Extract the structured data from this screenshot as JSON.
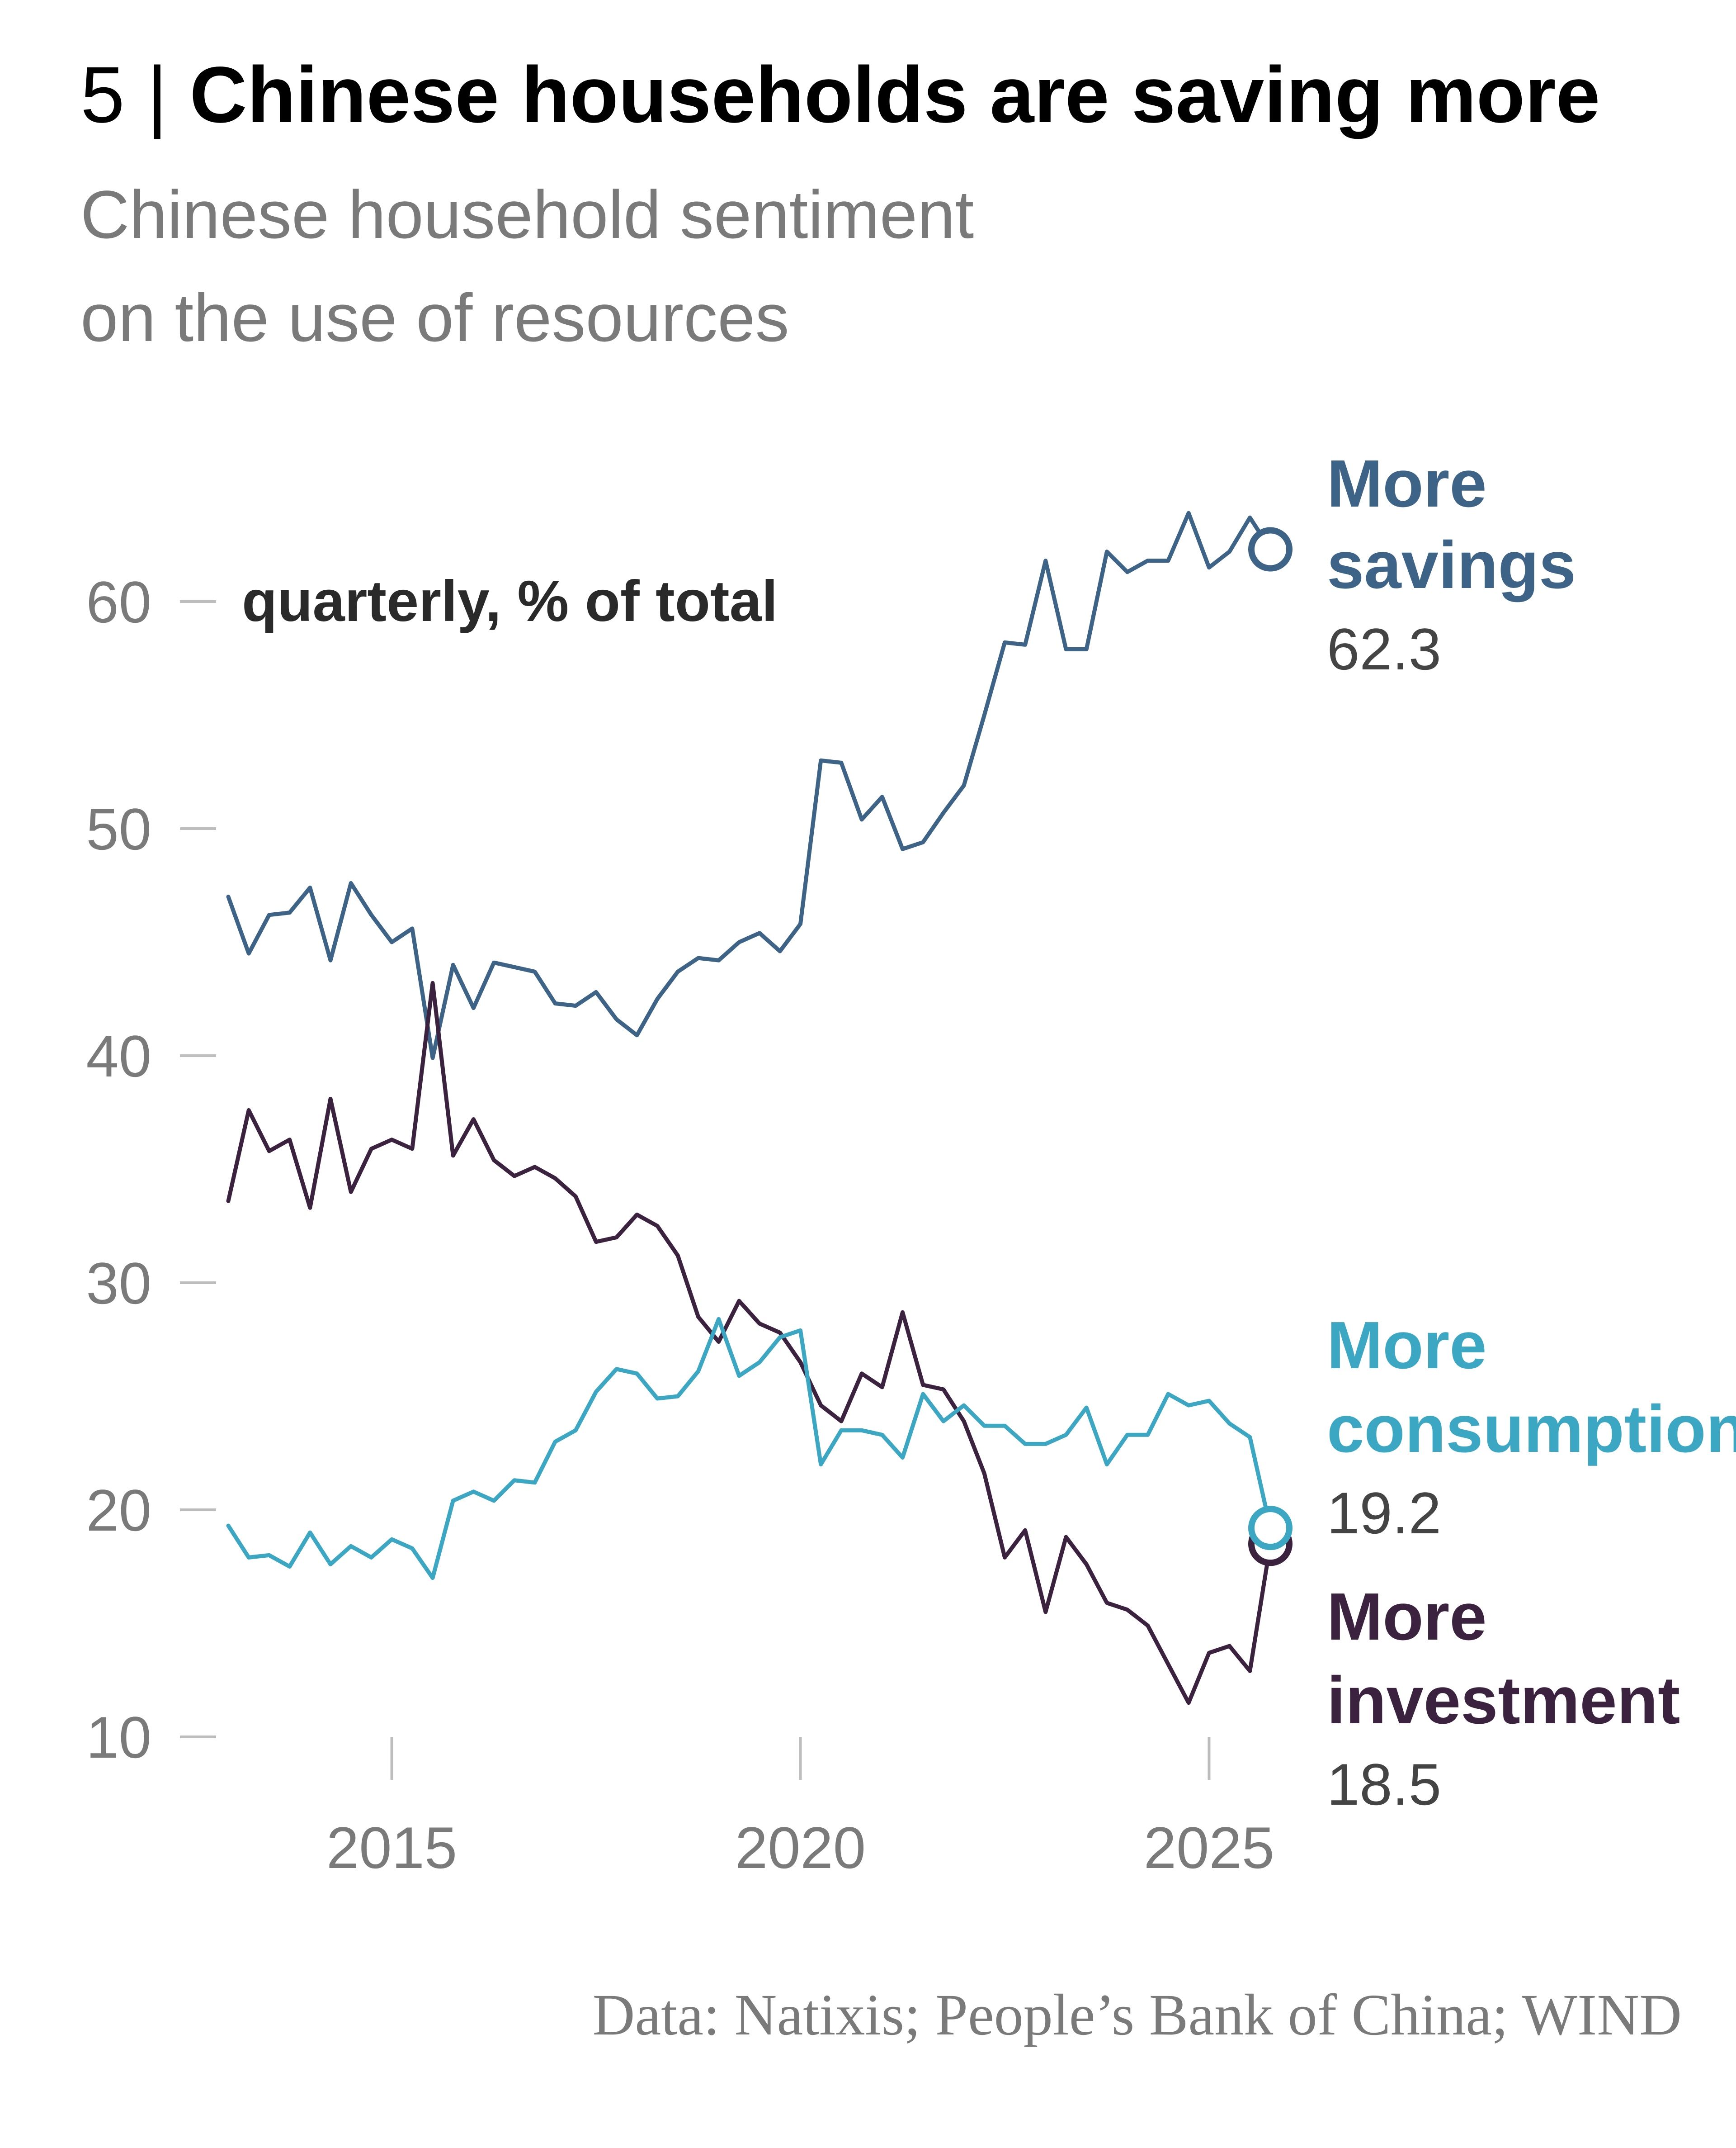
{
  "header": {
    "number": "5 |",
    "title": "Chinese households are saving more",
    "subtitle_line1": "Chinese household sentiment",
    "subtitle_line2": "on the use of resources"
  },
  "source": "Data: Natixis; People’s Bank of China; WIND",
  "colors": {
    "savings": "#3d6387",
    "consumption": "#3ba7c2",
    "investment": "#3b2340",
    "axis_text": "#7a7a7a",
    "tick": "#bdbdbd"
  },
  "chart_data": {
    "type": "line",
    "unit_note": "quarterly, % of total",
    "xlim": [
      2013,
      2025.75
    ],
    "ylim": [
      10,
      65
    ],
    "y_ticks": [
      10,
      20,
      30,
      40,
      50,
      60
    ],
    "y_tick_labels": [
      "10",
      "20",
      "30",
      "40",
      "50",
      "60"
    ],
    "x_ticks": [
      2015,
      2020,
      2025
    ],
    "x_tick_labels": [
      "2015",
      "2020",
      "2025"
    ],
    "grid": false,
    "x": [
      2013.0,
      2013.25,
      2013.5,
      2013.75,
      2014.0,
      2014.25,
      2014.5,
      2014.75,
      2015.0,
      2015.25,
      2015.5,
      2015.75,
      2016.0,
      2016.25,
      2016.5,
      2016.75,
      2017.0,
      2017.25,
      2017.5,
      2017.75,
      2018.0,
      2018.25,
      2018.5,
      2018.75,
      2019.0,
      2019.25,
      2019.5,
      2019.75,
      2020.0,
      2020.25,
      2020.5,
      2020.75,
      2021.0,
      2021.25,
      2021.5,
      2021.75,
      2022.0,
      2022.25,
      2022.5,
      2022.75,
      2023.0,
      2023.25,
      2023.5,
      2023.75,
      2024.0,
      2024.25,
      2024.5,
      2024.75,
      2025.0,
      2025.25,
      2025.5,
      2025.75
    ],
    "series": [
      {
        "name": "More savings",
        "name_line1": "More",
        "name_line2": "savings",
        "last_label": "62.3",
        "values": [
          47.0,
          44.5,
          46.2,
          46.3,
          47.4,
          44.2,
          47.6,
          46.2,
          45.0,
          45.6,
          39.9,
          44.0,
          42.1,
          44.1,
          43.9,
          43.7,
          42.3,
          42.2,
          42.8,
          41.6,
          40.9,
          42.5,
          43.7,
          44.3,
          44.2,
          45.0,
          45.4,
          44.6,
          45.8,
          53.0,
          52.9,
          50.4,
          51.4,
          49.1,
          49.4,
          50.7,
          51.9,
          55.0,
          58.2,
          58.1,
          61.8,
          57.9,
          57.9,
          62.2,
          61.3,
          61.8,
          61.8,
          63.9,
          61.5,
          62.2,
          63.7,
          62.3
        ],
        "endpoint_marker": true
      },
      {
        "name": "More consumption",
        "name_line1": "More",
        "name_line2": "consumption",
        "last_label": "19.2",
        "values": [
          19.3,
          17.9,
          18.0,
          17.5,
          19.0,
          17.6,
          18.4,
          17.9,
          18.7,
          18.3,
          17.0,
          20.4,
          20.8,
          20.4,
          21.3,
          21.2,
          23.0,
          23.5,
          25.2,
          26.2,
          26.0,
          24.9,
          25.0,
          26.1,
          28.4,
          25.9,
          26.5,
          27.6,
          27.9,
          22.0,
          23.5,
          23.5,
          23.3,
          22.3,
          25.1,
          23.9,
          24.6,
          23.7,
          23.7,
          22.9,
          22.9,
          23.3,
          24.5,
          22.0,
          23.3,
          23.3,
          25.1,
          24.6,
          24.8,
          23.8,
          23.2,
          19.2
        ],
        "endpoint_marker": true
      },
      {
        "name": "More investment",
        "name_line1": "More",
        "name_line2": "investment",
        "last_label": "18.5",
        "values": [
          33.6,
          37.6,
          35.8,
          36.3,
          33.3,
          38.1,
          34.0,
          35.9,
          36.3,
          35.9,
          43.2,
          35.6,
          37.2,
          35.4,
          34.7,
          35.1,
          34.6,
          33.8,
          31.8,
          32.0,
          33.0,
          32.5,
          31.2,
          28.5,
          27.4,
          29.2,
          28.2,
          27.8,
          26.5,
          24.6,
          23.9,
          26.0,
          25.4,
          28.7,
          25.5,
          25.3,
          23.9,
          21.6,
          17.9,
          19.1,
          15.5,
          18.8,
          17.6,
          15.9,
          15.6,
          14.9,
          13.2,
          11.5,
          13.7,
          14.0,
          12.9,
          18.5
        ],
        "endpoint_marker": true
      }
    ]
  }
}
